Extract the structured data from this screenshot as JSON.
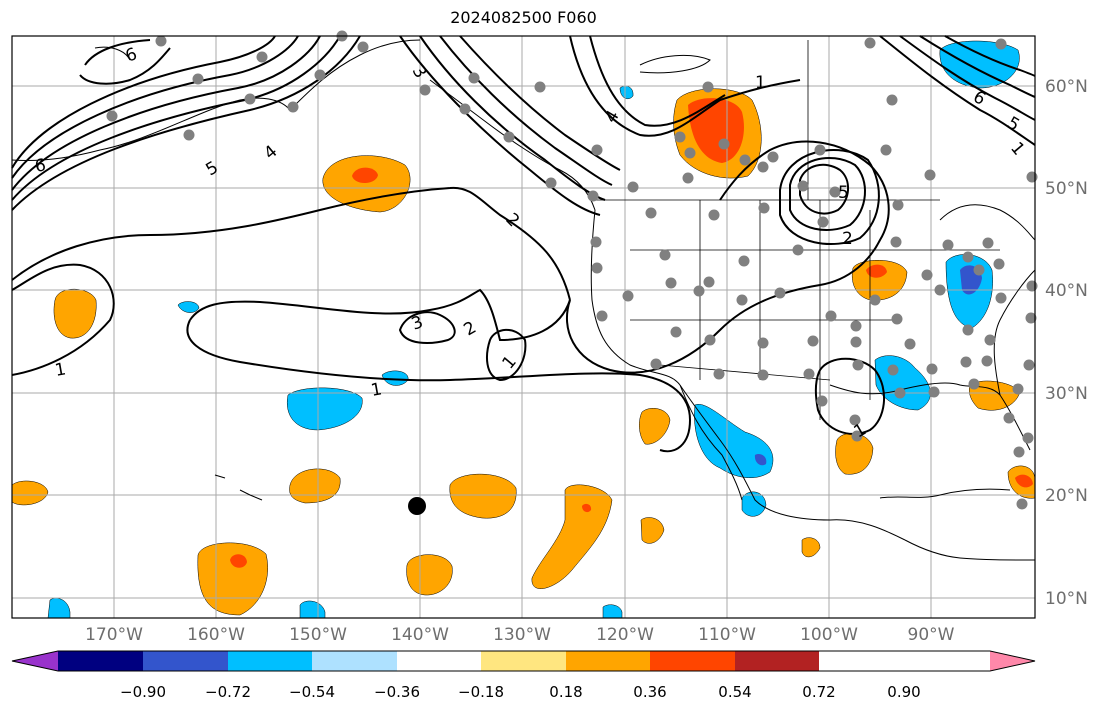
{
  "title": "2024082500 F060",
  "lon_ticks": [
    "170°W",
    "160°W",
    "150°W",
    "140°W",
    "130°W",
    "120°W",
    "110°W",
    "100°W",
    "90°W"
  ],
  "lat_ticks": [
    "60°N",
    "50°N",
    "40°N",
    "30°N",
    "20°N",
    "10°N"
  ],
  "colorbar": {
    "labels": [
      "−0.90",
      "−0.72",
      "−0.54",
      "−0.36",
      "−0.18",
      "0.18",
      "0.36",
      "0.54",
      "0.72",
      "0.90"
    ],
    "colors": [
      "#9933cc",
      "#000080",
      "#3355cc",
      "#00bfff",
      "#aee1ff",
      "#ffffff",
      "#ffe680",
      "#ffa500",
      "#ff4500",
      "#b22222",
      "#ff88aa"
    ]
  },
  "contour_labels": [
    "6",
    "6",
    "6",
    "5",
    "5",
    "5",
    "4",
    "4",
    "3",
    "3",
    "2",
    "2",
    "2",
    "1",
    "1",
    "1",
    "1",
    "1",
    "1"
  ],
  "colors": {
    "land_line": "#000000",
    "grid": "#aaaaaa",
    "station": "#808080",
    "positive": "#ffa500",
    "positive_strong": "#ff4500",
    "negative": "#00bfff",
    "negative_strong": "#3355cc"
  }
}
